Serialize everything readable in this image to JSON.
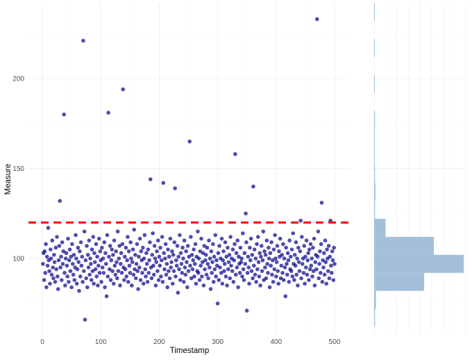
{
  "chart_data": [
    {
      "type": "scatter",
      "xlabel": "Timestamp",
      "ylabel": "Measure",
      "xlim": [
        -25,
        525
      ],
      "ylim": [
        62,
        237
      ],
      "x_ticks": [
        0,
        100,
        200,
        300,
        400,
        500
      ],
      "y_ticks": [
        100,
        150,
        200
      ],
      "grid": true,
      "point_color": "#00008B",
      "reference_line": {
        "y": 120,
        "color": "#FF0000",
        "style": "dashed"
      },
      "x_range": [
        1,
        500
      ],
      "y": [
        97,
        103,
        88,
        104,
        92,
        108,
        84,
        101,
        96,
        117,
        99,
        93,
        86,
        105,
        100,
        91,
        110,
        95,
        89,
        102,
        98,
        87,
        106,
        94,
        112,
        90,
        83,
        99,
        107,
        132,
        95,
        101,
        88,
        109,
        97,
        104,
        180,
        92,
        85,
        100,
        103,
        96,
        90,
        111,
        87,
        99,
        105,
        93,
        101,
        84,
        108,
        97,
        91,
        102,
        88,
        95,
        113,
        100,
        86,
        94,
        106,
        98,
        82,
        104,
        90,
        109,
        96,
        101,
        87,
        221,
        93,
        115,
        66,
        99,
        89,
        107,
        84,
        102,
        95,
        110,
        91,
        100,
        97,
        88,
        105,
        93,
        112,
        86,
        103,
        98,
        94,
        108,
        90,
        101,
        85,
        96,
        111,
        92,
        104,
        99,
        87,
        106,
        95,
        100,
        92,
        109,
        84,
        103,
        97,
        79,
        113,
        90,
        181,
        101,
        94,
        107,
        88,
        99,
        105,
        93,
        102,
        86,
        110,
        96,
        91,
        104,
        98,
        89,
        115,
        93,
        100,
        107,
        85,
        97,
        103,
        92,
        108,
        194,
        95,
        88,
        101,
        94,
        106,
        90,
        99,
        112,
        87,
        104,
        96,
        92,
        109,
        100,
        85,
        98,
        105,
        91,
        116,
        94,
        102,
        89,
        97,
        108,
        93,
        83,
        101,
        95,
        111,
        88,
        104,
        99,
        92,
        106,
        86,
        100,
        113,
        94,
        90,
        103,
        97,
        87,
        105,
        92,
        99,
        109,
        144,
        95,
        89,
        102,
        114,
        96,
        91,
        107,
        100,
        85,
        98,
        104,
        93,
        110,
        88,
        101,
        96,
        106,
        90,
        99,
        112,
        87,
        142,
        103,
        94,
        100,
        108,
        91,
        97,
        84,
        105,
        93,
        101,
        89,
        111,
        95,
        98,
        104,
        86,
        102,
        93,
        109,
        139,
        90,
        99,
        96,
        107,
        81,
        101,
        94,
        113,
        88,
        103,
        97,
        92,
        106,
        100,
        87,
        110,
        95,
        91,
        104,
        98,
        84,
        107,
        93,
        101,
        165,
        96,
        112,
        89,
        102,
        94,
        99,
        105,
        90,
        97,
        108,
        86,
        101,
        93,
        115,
        92,
        100,
        88,
        104,
        96,
        111,
        90,
        98,
        103,
        85,
        107,
        94,
        99,
        102,
        91,
        106,
        97,
        89,
        110,
        95,
        100,
        83,
        104,
        92,
        98,
        108,
        87,
        101,
        94,
        113,
        90,
        99,
        96,
        75,
        103,
        88,
        107,
        95,
        100,
        92,
        111,
        86,
        99,
        104,
        93,
        97,
        109,
        90,
        101,
        85,
        106,
        94,
        98,
        102,
        89,
        112,
        96,
        100,
        93,
        105,
        87,
        99,
        108,
        158,
        91,
        103,
        95,
        110,
        84,
        101,
        97,
        92,
        106,
        98,
        100,
        90,
        114,
        94,
        88,
        103,
        97,
        125,
        109,
        71,
        92,
        101,
        95,
        86,
        106,
        99,
        111,
        93,
        102,
        89,
        140,
        96,
        105,
        91,
        100,
        87,
        108,
        94,
        112,
        98,
        90,
        103,
        85,
        101,
        107,
        93,
        99,
        115,
        88,
        104,
        95,
        102,
        89,
        110,
        97,
        92,
        106,
        100,
        84,
        103,
        96,
        109,
        91,
        99,
        87,
        105,
        94,
        113,
        100,
        90,
        98,
        107,
        93,
        86,
        104,
        101,
        111,
        89,
        96,
        102,
        92,
        108,
        88,
        100,
        95,
        79,
        106,
        97,
        91,
        103,
        99,
        87,
        110,
        94,
        101,
        93,
        105,
        90,
        114,
        97,
        88,
        102,
        96,
        109,
        91,
        100,
        85,
        106,
        98,
        93,
        104,
        121,
        89,
        112,
        97,
        100,
        92,
        107,
        86,
        101,
        95,
        110,
        91,
        99,
        103,
        88,
        105,
        94,
        108,
        96,
        100,
        90,
        106,
        93,
        111,
        85,
        98,
        102,
        94,
        233,
        101,
        115,
        89,
        97,
        104,
        92,
        108,
        131,
        87,
        99,
        95,
        103,
        91,
        110,
        98,
        86,
        105,
        100,
        93,
        107,
        89,
        101,
        121,
        96,
        92,
        104,
        99,
        88,
        106,
        97
      ]
    },
    {
      "type": "histogram",
      "orientation": "horizontal",
      "binwidth": 10,
      "bin_boundary": 2,
      "fill_color": "#A3BFD9",
      "grid": true
    }
  ]
}
